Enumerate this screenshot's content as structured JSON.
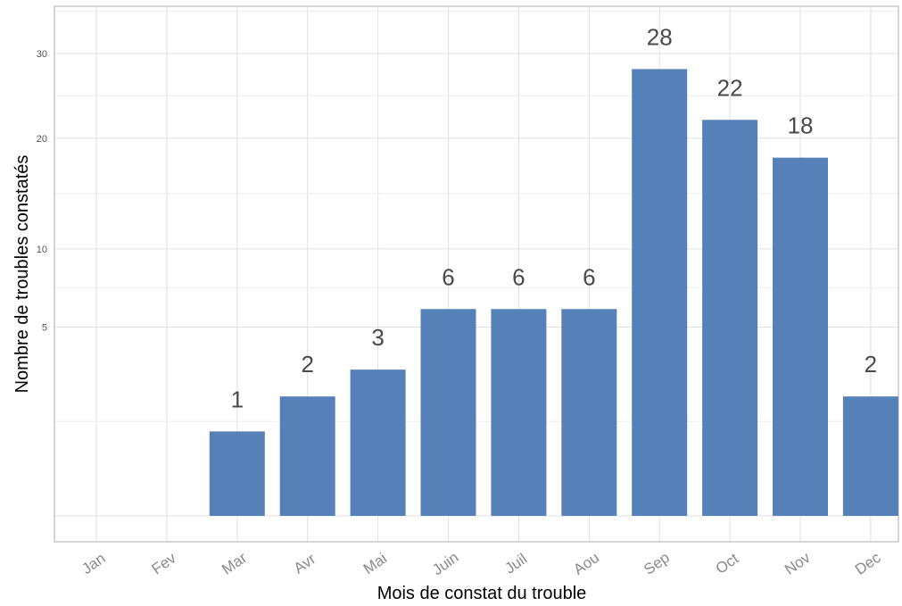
{
  "chart_data": {
    "type": "bar",
    "xlabel": "Mois de constat du trouble",
    "ylabel": "Nombre de troubles constatés",
    "categories": [
      "Jan",
      "Fev",
      "Mar",
      "Avr",
      "Mai",
      "Juin",
      "Juil",
      "Aou",
      "Sep",
      "Oct",
      "Nov",
      "Dec"
    ],
    "values": [
      0,
      0,
      1,
      2,
      3,
      6,
      6,
      6,
      28,
      22,
      18,
      2
    ],
    "data_labels": [
      "",
      "",
      "1",
      "2",
      "3",
      "6",
      "6",
      "6",
      "28",
      "22",
      "18",
      "2"
    ],
    "y_ticks": [
      5,
      10,
      20,
      30
    ],
    "y_tick_labels": [
      "5",
      "10",
      "20",
      "30"
    ],
    "y_scale": "sqrt",
    "ylim": [
      0,
      32
    ],
    "grid": true,
    "bar_color": "#5580b8"
  }
}
